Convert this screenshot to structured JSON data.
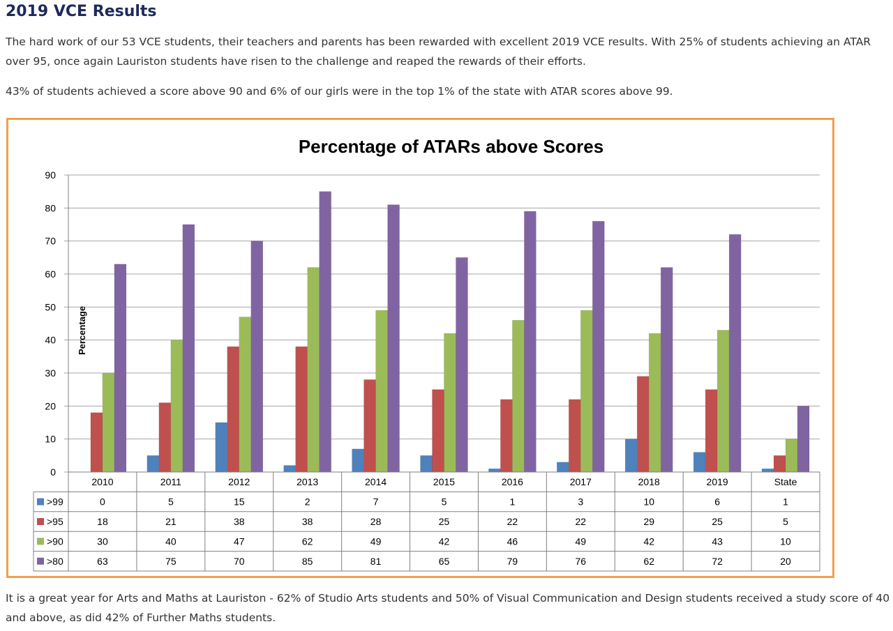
{
  "page": {
    "heading": "2019 VCE Results",
    "paragraph1": "The hard work of our 53 VCE students, their teachers and parents has been rewarded with excellent 2019 VCE results. With 25% of students achieving an ATAR over 95, once again Lauriston students have risen to the challenge and reaped the rewards of their efforts.",
    "paragraph2": "43% of students achieved a score above 90 and 6% of our girls were in the top 1% of the state with ATAR scores above 99.",
    "paragraph3": "It is a great year for Arts and Maths at Lauriston - 62% of Studio Arts students and 50% of Visual Communication and Design students received a study score of 40 and above, as did 42% of Further Maths students."
  },
  "colors": {
    "heading": "#1f2a5c",
    "frame": "#f0a04b"
  },
  "chart_data": {
    "type": "bar",
    "title": "Percentage of ATARs above Scores",
    "ylabel": "Percentage",
    "xlabel": "",
    "ylim": [
      0,
      90
    ],
    "yticks": [
      0,
      10,
      20,
      30,
      40,
      50,
      60,
      70,
      80,
      90
    ],
    "grid": true,
    "legend": "data-table",
    "categories": [
      "2010",
      "2011",
      "2012",
      "2013",
      "2014",
      "2015",
      "2016",
      "2017",
      "2018",
      "2019",
      "State"
    ],
    "series": [
      {
        "name": ">99",
        "color": "#4f81bd",
        "values": [
          0,
          5,
          15,
          2,
          7,
          5,
          1,
          3,
          10,
          6,
          1
        ]
      },
      {
        "name": ">95",
        "color": "#c0504d",
        "values": [
          18,
          21,
          38,
          38,
          28,
          25,
          22,
          22,
          29,
          25,
          5
        ]
      },
      {
        "name": ">90",
        "color": "#9bbb59",
        "values": [
          30,
          40,
          47,
          62,
          49,
          42,
          46,
          49,
          42,
          43,
          10
        ]
      },
      {
        "name": ">80",
        "color": "#8064a2",
        "values": [
          63,
          75,
          70,
          85,
          81,
          65,
          79,
          76,
          62,
          72,
          20
        ]
      }
    ]
  }
}
